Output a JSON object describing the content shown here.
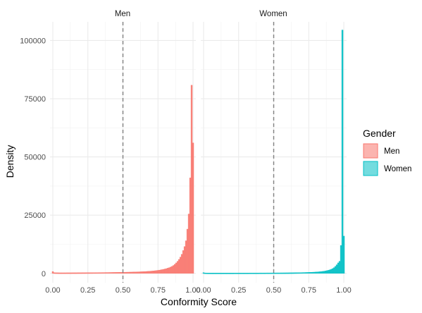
{
  "chart_data": {
    "type": "histogram",
    "xlabel": "Conformity Score",
    "ylabel": "Density",
    "xlim": [
      -0.02,
      1.02
    ],
    "ylim": [
      -4000,
      108000
    ],
    "x_ticks": [
      0.0,
      0.25,
      0.5,
      0.75,
      1.0
    ],
    "x_tick_labels": [
      "0.00",
      "0.25",
      "0.50",
      "0.75",
      "1.00"
    ],
    "y_ticks": [
      0,
      25000,
      50000,
      75000,
      100000
    ],
    "y_tick_labels": [
      "0",
      "25000",
      "50000",
      "75000",
      "100000"
    ],
    "reference_line": {
      "x": 0.5,
      "style": "dashed",
      "color": "#808080"
    },
    "grid": true,
    "legend": {
      "title": "Gender",
      "position": "right",
      "entries": [
        {
          "label": "Men",
          "fill": "#F8766D"
        },
        {
          "label": "Women",
          "fill": "#00BFC4"
        }
      ]
    },
    "panels": [
      {
        "strip": "Men",
        "color": "#F8766D",
        "bin_width": 0.01,
        "bins": [
          [
            0.0,
            800
          ],
          [
            0.01,
            300
          ],
          [
            0.02,
            280
          ],
          [
            0.03,
            270
          ],
          [
            0.04,
            260
          ],
          [
            0.05,
            250
          ],
          [
            0.06,
            250
          ],
          [
            0.07,
            250
          ],
          [
            0.08,
            250
          ],
          [
            0.09,
            250
          ],
          [
            0.1,
            260
          ],
          [
            0.11,
            260
          ],
          [
            0.12,
            260
          ],
          [
            0.13,
            260
          ],
          [
            0.14,
            270
          ],
          [
            0.15,
            270
          ],
          [
            0.16,
            270
          ],
          [
            0.17,
            270
          ],
          [
            0.18,
            280
          ],
          [
            0.19,
            280
          ],
          [
            0.2,
            280
          ],
          [
            0.21,
            290
          ],
          [
            0.22,
            290
          ],
          [
            0.23,
            290
          ],
          [
            0.24,
            300
          ],
          [
            0.25,
            300
          ],
          [
            0.26,
            300
          ],
          [
            0.27,
            310
          ],
          [
            0.28,
            310
          ],
          [
            0.29,
            320
          ],
          [
            0.3,
            320
          ],
          [
            0.31,
            330
          ],
          [
            0.32,
            330
          ],
          [
            0.33,
            340
          ],
          [
            0.34,
            340
          ],
          [
            0.35,
            350
          ],
          [
            0.36,
            350
          ],
          [
            0.37,
            360
          ],
          [
            0.38,
            370
          ],
          [
            0.39,
            370
          ],
          [
            0.4,
            380
          ],
          [
            0.41,
            390
          ],
          [
            0.42,
            400
          ],
          [
            0.43,
            410
          ],
          [
            0.44,
            420
          ],
          [
            0.45,
            430
          ],
          [
            0.46,
            440
          ],
          [
            0.47,
            450
          ],
          [
            0.48,
            460
          ],
          [
            0.49,
            470
          ],
          [
            0.5,
            480
          ],
          [
            0.51,
            490
          ],
          [
            0.52,
            500
          ],
          [
            0.53,
            520
          ],
          [
            0.54,
            530
          ],
          [
            0.55,
            550
          ],
          [
            0.56,
            560
          ],
          [
            0.57,
            580
          ],
          [
            0.58,
            600
          ],
          [
            0.59,
            620
          ],
          [
            0.6,
            640
          ],
          [
            0.61,
            660
          ],
          [
            0.62,
            680
          ],
          [
            0.63,
            710
          ],
          [
            0.64,
            740
          ],
          [
            0.65,
            770
          ],
          [
            0.66,
            800
          ],
          [
            0.67,
            840
          ],
          [
            0.68,
            880
          ],
          [
            0.69,
            920
          ],
          [
            0.7,
            970
          ],
          [
            0.71,
            1020
          ],
          [
            0.72,
            1080
          ],
          [
            0.73,
            1150
          ],
          [
            0.74,
            1220
          ],
          [
            0.75,
            1300
          ],
          [
            0.76,
            1400
          ],
          [
            0.77,
            1500
          ],
          [
            0.78,
            1620
          ],
          [
            0.79,
            1750
          ],
          [
            0.8,
            1900
          ],
          [
            0.81,
            2050
          ],
          [
            0.82,
            2250
          ],
          [
            0.83,
            2450
          ],
          [
            0.84,
            2700
          ],
          [
            0.85,
            3000
          ],
          [
            0.86,
            3400
          ],
          [
            0.87,
            3900
          ],
          [
            0.88,
            4500
          ],
          [
            0.89,
            5200
          ],
          [
            0.9,
            6000
          ],
          [
            0.91,
            7000
          ],
          [
            0.92,
            8200
          ],
          [
            0.93,
            9800
          ],
          [
            0.94,
            11500
          ],
          [
            0.95,
            14000
          ],
          [
            0.96,
            19000
          ],
          [
            0.97,
            25500
          ],
          [
            0.98,
            41000
          ],
          [
            0.99,
            80800
          ],
          [
            1.0,
            56000
          ]
        ]
      },
      {
        "strip": "Women",
        "color": "#00BFC4",
        "bin_width": 0.01,
        "bins": [
          [
            0.0,
            300
          ],
          [
            0.01,
            200
          ],
          [
            0.02,
            180
          ],
          [
            0.03,
            170
          ],
          [
            0.04,
            170
          ],
          [
            0.05,
            160
          ],
          [
            0.06,
            160
          ],
          [
            0.07,
            160
          ],
          [
            0.08,
            160
          ],
          [
            0.09,
            160
          ],
          [
            0.1,
            160
          ],
          [
            0.11,
            160
          ],
          [
            0.12,
            160
          ],
          [
            0.13,
            160
          ],
          [
            0.14,
            160
          ],
          [
            0.15,
            160
          ],
          [
            0.16,
            160
          ],
          [
            0.17,
            160
          ],
          [
            0.18,
            160
          ],
          [
            0.19,
            160
          ],
          [
            0.2,
            160
          ],
          [
            0.21,
            160
          ],
          [
            0.22,
            170
          ],
          [
            0.23,
            170
          ],
          [
            0.24,
            170
          ],
          [
            0.25,
            170
          ],
          [
            0.26,
            170
          ],
          [
            0.27,
            170
          ],
          [
            0.28,
            170
          ],
          [
            0.29,
            170
          ],
          [
            0.3,
            170
          ],
          [
            0.31,
            170
          ],
          [
            0.32,
            170
          ],
          [
            0.33,
            180
          ],
          [
            0.34,
            180
          ],
          [
            0.35,
            180
          ],
          [
            0.36,
            180
          ],
          [
            0.37,
            180
          ],
          [
            0.38,
            180
          ],
          [
            0.39,
            180
          ],
          [
            0.4,
            190
          ],
          [
            0.41,
            190
          ],
          [
            0.42,
            190
          ],
          [
            0.43,
            190
          ],
          [
            0.44,
            190
          ],
          [
            0.45,
            200
          ],
          [
            0.46,
            200
          ],
          [
            0.47,
            200
          ],
          [
            0.48,
            200
          ],
          [
            0.49,
            210
          ],
          [
            0.5,
            210
          ],
          [
            0.51,
            210
          ],
          [
            0.52,
            220
          ],
          [
            0.53,
            220
          ],
          [
            0.54,
            220
          ],
          [
            0.55,
            230
          ],
          [
            0.56,
            230
          ],
          [
            0.57,
            240
          ],
          [
            0.58,
            240
          ],
          [
            0.59,
            250
          ],
          [
            0.6,
            250
          ],
          [
            0.61,
            260
          ],
          [
            0.62,
            270
          ],
          [
            0.63,
            270
          ],
          [
            0.64,
            280
          ],
          [
            0.65,
            290
          ],
          [
            0.66,
            300
          ],
          [
            0.67,
            310
          ],
          [
            0.68,
            320
          ],
          [
            0.69,
            330
          ],
          [
            0.7,
            340
          ],
          [
            0.71,
            360
          ],
          [
            0.72,
            370
          ],
          [
            0.73,
            390
          ],
          [
            0.74,
            410
          ],
          [
            0.75,
            430
          ],
          [
            0.76,
            450
          ],
          [
            0.77,
            480
          ],
          [
            0.78,
            510
          ],
          [
            0.79,
            540
          ],
          [
            0.8,
            580
          ],
          [
            0.81,
            620
          ],
          [
            0.82,
            670
          ],
          [
            0.83,
            720
          ],
          [
            0.84,
            790
          ],
          [
            0.85,
            860
          ],
          [
            0.86,
            950
          ],
          [
            0.87,
            1050
          ],
          [
            0.88,
            1180
          ],
          [
            0.89,
            1330
          ],
          [
            0.9,
            1500
          ],
          [
            0.91,
            1750
          ],
          [
            0.92,
            2050
          ],
          [
            0.93,
            2450
          ],
          [
            0.94,
            3000
          ],
          [
            0.95,
            3700
          ],
          [
            0.96,
            4500
          ],
          [
            0.97,
            5200
          ],
          [
            0.98,
            12000
          ],
          [
            0.99,
            104500
          ],
          [
            1.0,
            16000
          ]
        ]
      }
    ]
  }
}
